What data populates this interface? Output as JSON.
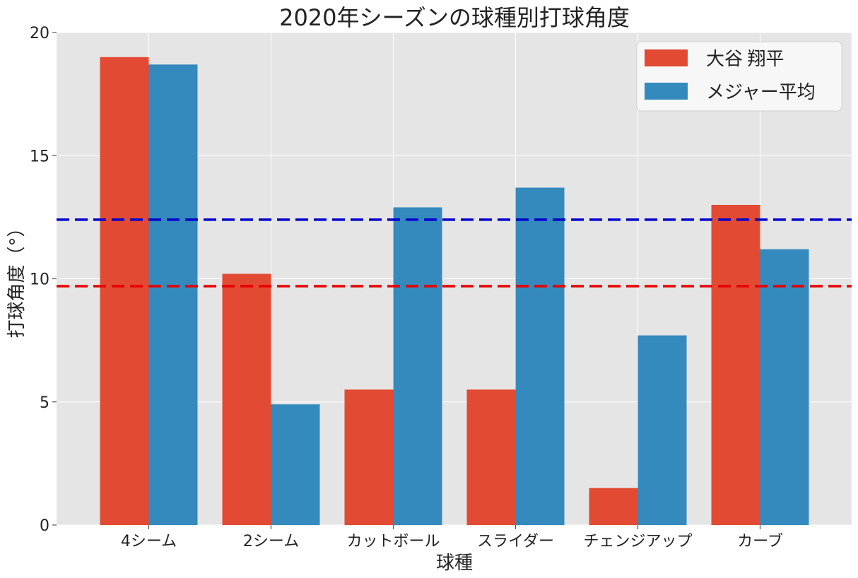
{
  "chart_data": {
    "type": "bar",
    "title": "2020年シーズンの球種別打球角度",
    "xlabel": "球種",
    "ylabel": "打球角度（°）",
    "categories": [
      "4シーム",
      "2シーム",
      "カットボール",
      "スライダー",
      "チェンジアップ",
      "カーブ"
    ],
    "series": [
      {
        "name": "大谷 翔平",
        "color": "#e24a33",
        "values": [
          19.0,
          10.2,
          5.5,
          5.5,
          1.5,
          13.0
        ]
      },
      {
        "name": "メジャー平均",
        "color": "#348abd",
        "values": [
          18.7,
          4.9,
          12.9,
          13.7,
          7.7,
          11.2
        ]
      }
    ],
    "reference_lines": [
      {
        "value": 12.4,
        "color": "#0000cc",
        "style": "dashed"
      },
      {
        "value": 9.7,
        "color": "#e60000",
        "style": "dashed"
      }
    ],
    "ylim": [
      0,
      20
    ],
    "yticks": [
      0,
      5,
      10,
      15,
      20
    ],
    "grid": true,
    "legend_position": "top-right",
    "background": "#e5e5e5"
  }
}
